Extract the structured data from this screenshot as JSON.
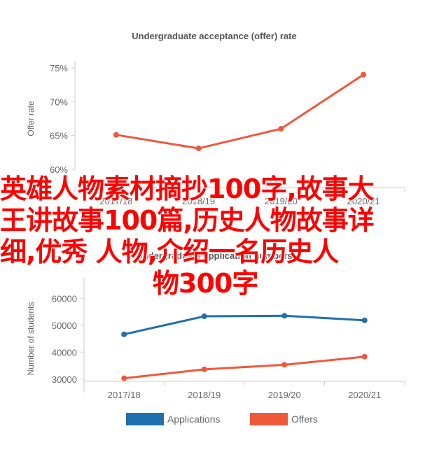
{
  "chart_data": [
    {
      "type": "line",
      "title": "Undergraduate acceptance (offer) rate",
      "ylabel": "Offer rate",
      "xlabel": "",
      "categories": [
        "2017/18",
        "2018/19",
        "2019/20",
        "2020/21"
      ],
      "series": [
        {
          "values": [
            65.1,
            63.1,
            66.0,
            74.0
          ],
          "color": "#f0583a"
        }
      ],
      "ylim": [
        60,
        75
      ],
      "yticks": [
        "60%",
        "65%",
        "70%",
        "75%"
      ],
      "grid": false
    },
    {
      "type": "line",
      "title": "Undergraduate application numbers",
      "ylabel": "Number of students",
      "xlabel": "",
      "categories": [
        "2017/18",
        "2018/19",
        "2019/20",
        "2020/21"
      ],
      "series": [
        {
          "name": "Applications",
          "values": [
            46600,
            53300,
            53500,
            51800
          ],
          "color": "#1f6fad"
        },
        {
          "name": "Offers",
          "values": [
            30300,
            33600,
            35300,
            38300
          ],
          "color": "#f0583a"
        }
      ],
      "ylim": [
        25000,
        65000
      ],
      "yticks": [
        "30000",
        "40000",
        "50000",
        "60000"
      ],
      "legend": "bottom",
      "grid": false
    }
  ],
  "overlay": {
    "line1": "英雄人物素材摘抄100字,故事大",
    "line2": "王讲故事100篇,历史人物故事详",
    "line3": "细,优秀  人物,介绍一名历史人",
    "line4": "物300字"
  }
}
